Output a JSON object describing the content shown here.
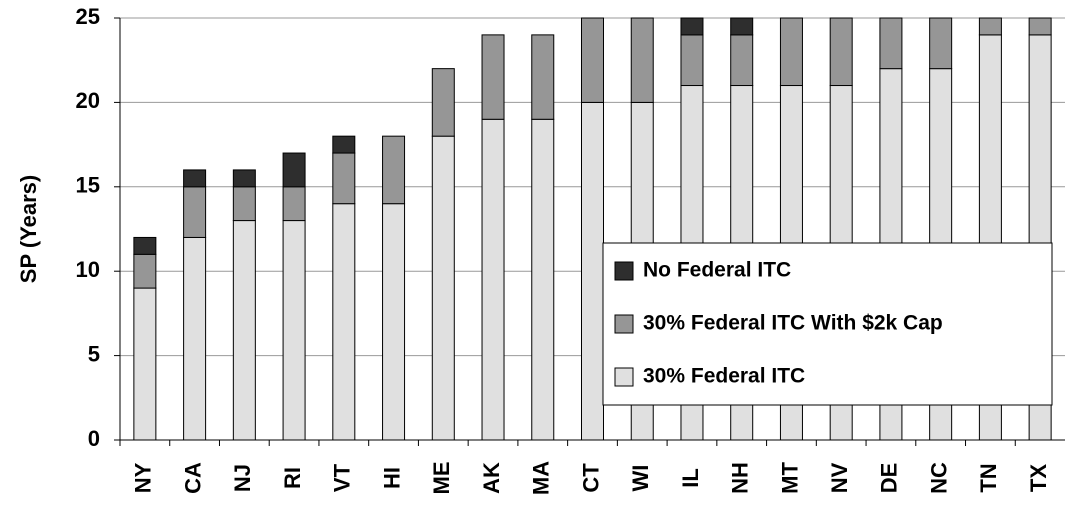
{
  "chart_data": {
    "type": "stacked_bar",
    "y_label": "SP (Years)",
    "categories": [
      "NY",
      "CA",
      "NJ",
      "RI",
      "VT",
      "HI",
      "ME",
      "AK",
      "MA",
      "CT",
      "WI",
      "IL",
      "NH",
      "MT",
      "NV",
      "DE",
      "NC",
      "TN",
      "TX"
    ],
    "series": [
      {
        "name": "30% Federal ITC",
        "color": "#e0e0e0",
        "values": [
          9,
          12,
          13,
          13,
          14,
          14,
          18,
          19,
          19,
          20,
          20,
          21,
          21,
          21,
          21,
          22,
          22,
          24,
          24
        ]
      },
      {
        "name": "30% Federal ITC With $2k Cap",
        "color": "#969696",
        "values": [
          2,
          3,
          2,
          2,
          3,
          4,
          4,
          5,
          5,
          5,
          5,
          3,
          3,
          4,
          4,
          3,
          3,
          1,
          1
        ]
      },
      {
        "name": "No Federal ITC",
        "color": "#2e2e2e",
        "values": [
          1,
          1,
          1,
          2,
          1,
          0,
          0,
          0,
          0,
          0,
          0,
          1,
          1,
          0,
          0,
          0,
          0,
          0,
          0
        ]
      }
    ],
    "ylim": [
      0,
      25
    ],
    "yticks": [
      0,
      5,
      10,
      15,
      20,
      25
    ],
    "grid": true,
    "legend": "lower right"
  }
}
